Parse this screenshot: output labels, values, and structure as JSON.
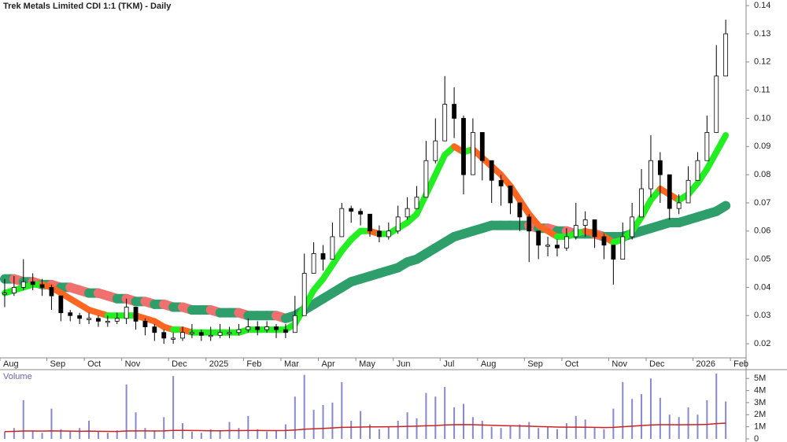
{
  "chart_data": [
    {
      "type": "candlestick",
      "title": "Trek Metals Limited CDI 1:1 (TKM) - Daily",
      "categories": [
        "Aug",
        null,
        null,
        null,
        null,
        "Sep",
        null,
        null,
        null,
        "Oct",
        null,
        null,
        null,
        "Nov",
        null,
        null,
        null,
        null,
        "Dec",
        null,
        null,
        null,
        "2025",
        null,
        null,
        null,
        "Feb",
        null,
        null,
        null,
        "Mar",
        null,
        null,
        null,
        "Apr",
        null,
        null,
        null,
        "May",
        null,
        null,
        null,
        "Jun",
        null,
        null,
        null,
        null,
        "Jul",
        null,
        null,
        null,
        "Aug",
        null,
        null,
        null,
        null,
        "Sep",
        null,
        null,
        null,
        "Oct",
        null,
        null,
        null,
        null,
        "Nov",
        null,
        null,
        null,
        "Dec",
        null,
        null,
        null,
        null,
        "2026",
        null,
        null,
        null,
        "Feb"
      ],
      "high": [
        0.043,
        0.044,
        0.05,
        0.045,
        0.043,
        0.041,
        0.035,
        0.032,
        0.031,
        0.031,
        0.03,
        0.03,
        0.031,
        0.036,
        0.033,
        0.029,
        0.027,
        0.025,
        0.024,
        0.026,
        0.027,
        0.025,
        0.026,
        0.027,
        0.026,
        0.027,
        0.029,
        0.028,
        0.028,
        0.027,
        0.027,
        0.037,
        0.052,
        0.056,
        0.055,
        0.063,
        0.07,
        0.069,
        0.068,
        0.066,
        0.062,
        0.063,
        0.069,
        0.072,
        0.076,
        0.092,
        0.1,
        0.115,
        0.111,
        0.101,
        0.1,
        0.091,
        0.084,
        0.08,
        0.076,
        0.07,
        0.066,
        0.06,
        0.058,
        0.057,
        0.061,
        0.07,
        0.067,
        0.063,
        0.059,
        0.054,
        0.063,
        0.07,
        0.082,
        0.094,
        0.088,
        0.08,
        0.073,
        0.083,
        0.088,
        0.101,
        0.126,
        0.135,
        null
      ],
      "low": [
        0.033,
        0.037,
        0.039,
        0.039,
        0.037,
        0.032,
        0.028,
        0.028,
        0.027,
        0.027,
        0.026,
        0.026,
        0.027,
        0.027,
        0.025,
        0.023,
        0.021,
        0.02,
        0.02,
        0.021,
        0.022,
        0.021,
        0.021,
        0.022,
        0.022,
        0.023,
        0.024,
        0.023,
        0.024,
        0.022,
        0.022,
        0.024,
        0.033,
        0.048,
        0.046,
        0.05,
        0.06,
        0.063,
        0.062,
        0.058,
        0.056,
        0.057,
        0.059,
        0.064,
        0.068,
        0.072,
        0.084,
        0.092,
        0.093,
        0.073,
        0.082,
        0.078,
        0.07,
        0.069,
        0.066,
        0.06,
        0.049,
        0.05,
        0.051,
        0.051,
        0.053,
        0.057,
        0.058,
        0.054,
        0.05,
        0.041,
        0.052,
        0.057,
        0.065,
        0.072,
        0.07,
        0.064,
        0.066,
        0.071,
        0.08,
        0.086,
        0.1,
        0.115,
        null
      ],
      "close": [
        0.038,
        0.04,
        0.042,
        0.041,
        0.04,
        0.037,
        0.031,
        0.03,
        0.029,
        0.029,
        0.028,
        0.028,
        0.029,
        0.033,
        0.028,
        0.026,
        0.024,
        0.022,
        0.022,
        0.024,
        0.024,
        0.023,
        0.023,
        0.024,
        0.024,
        0.025,
        0.026,
        0.025,
        0.026,
        0.025,
        0.024,
        0.03,
        0.045,
        0.052,
        0.05,
        0.058,
        0.068,
        0.067,
        0.066,
        0.06,
        0.058,
        0.06,
        0.065,
        0.068,
        0.072,
        0.085,
        0.092,
        0.105,
        0.1,
        0.08,
        0.095,
        0.085,
        0.078,
        0.076,
        0.07,
        0.065,
        0.06,
        0.055,
        0.055,
        0.054,
        0.058,
        0.062,
        0.064,
        0.058,
        0.055,
        0.05,
        0.058,
        0.065,
        0.075,
        0.085,
        0.08,
        0.068,
        0.07,
        0.078,
        0.085,
        0.095,
        0.115,
        0.13,
        null
      ],
      "ma_fast": [
        0.038,
        0.039,
        0.04,
        0.041,
        0.041,
        0.04,
        0.038,
        0.036,
        0.034,
        0.032,
        0.031,
        0.03,
        0.03,
        0.03,
        0.03,
        0.029,
        0.028,
        0.026,
        0.025,
        0.025,
        0.024,
        0.024,
        0.024,
        0.024,
        0.024,
        0.024,
        0.025,
        0.025,
        0.025,
        0.025,
        0.025,
        0.027,
        0.033,
        0.039,
        0.043,
        0.048,
        0.053,
        0.057,
        0.06,
        0.06,
        0.059,
        0.059,
        0.061,
        0.063,
        0.066,
        0.073,
        0.08,
        0.087,
        0.09,
        0.088,
        0.089,
        0.086,
        0.083,
        0.08,
        0.076,
        0.071,
        0.066,
        0.062,
        0.06,
        0.058,
        0.058,
        0.059,
        0.06,
        0.059,
        0.058,
        0.056,
        0.057,
        0.06,
        0.065,
        0.071,
        0.075,
        0.073,
        0.071,
        0.073,
        0.077,
        0.082,
        0.088,
        0.094,
        null
      ],
      "ma_slow": [
        0.043,
        0.043,
        0.042,
        0.042,
        0.041,
        0.041,
        0.04,
        0.04,
        0.039,
        0.038,
        0.038,
        0.037,
        0.036,
        0.036,
        0.035,
        0.035,
        0.034,
        0.034,
        0.033,
        0.033,
        0.032,
        0.032,
        0.032,
        0.031,
        0.031,
        0.031,
        0.03,
        0.03,
        0.03,
        0.03,
        0.029,
        0.03,
        0.032,
        0.034,
        0.036,
        0.038,
        0.04,
        0.042,
        0.043,
        0.044,
        0.045,
        0.046,
        0.047,
        0.049,
        0.05,
        0.052,
        0.054,
        0.056,
        0.058,
        0.059,
        0.06,
        0.061,
        0.062,
        0.062,
        0.062,
        0.062,
        0.062,
        0.061,
        0.061,
        0.06,
        0.06,
        0.059,
        0.059,
        0.059,
        0.058,
        0.058,
        0.058,
        0.059,
        0.06,
        0.061,
        0.062,
        0.063,
        0.063,
        0.064,
        0.065,
        0.066,
        0.067,
        0.069,
        null
      ],
      "colors": {
        "candle": "#000000",
        "fast_up": "#22ee22",
        "fast_down": "#ff6622",
        "slow_up": "#2e9e6a",
        "slow_down": "#f07070"
      },
      "ylim": [
        0.015,
        0.142
      ],
      "yticks": [
        0.02,
        0.03,
        0.04,
        0.05,
        0.06,
        0.07,
        0.08,
        0.09,
        {
          "value": 0.1,
          "label": "0.10"
        },
        0.11,
        0.12,
        0.13,
        0.14
      ]
    },
    {
      "type": "bar",
      "title": "Volume",
      "values": [
        600000,
        900000,
        3200000,
        700000,
        500000,
        2500000,
        800000,
        600000,
        900000,
        1500000,
        600000,
        500000,
        700000,
        4500000,
        2200000,
        900000,
        700000,
        1800000,
        5200000,
        1300000,
        600000,
        500000,
        800000,
        700000,
        1400000,
        900000,
        1900000,
        800000,
        600000,
        700000,
        1200000,
        3500000,
        5300000,
        2400000,
        2800000,
        3000000,
        4700000,
        1500000,
        2300000,
        1200000,
        800000,
        1000000,
        1500000,
        2200000,
        1700000,
        3800000,
        3500000,
        4300000,
        2600000,
        2900000,
        1800000,
        1500000,
        1000000,
        900000,
        1100000,
        1200000,
        1400000,
        900000,
        1000000,
        800000,
        1300000,
        1900000,
        1600000,
        900000,
        800000,
        2500000,
        4700000,
        3300000,
        3700000,
        5000000,
        3400000,
        2000000,
        1800000,
        2600000,
        2000000,
        3200000,
        5400000,
        3100000,
        null
      ],
      "ma": [
        600000,
        620000,
        650000,
        650000,
        640000,
        660000,
        650000,
        640000,
        630000,
        640000,
        630000,
        620000,
        610000,
        650000,
        660000,
        660000,
        650000,
        660000,
        700000,
        700000,
        690000,
        680000,
        670000,
        670000,
        680000,
        680000,
        690000,
        690000,
        680000,
        680000,
        690000,
        730000,
        800000,
        830000,
        860000,
        900000,
        950000,
        960000,
        980000,
        990000,
        990000,
        1000000,
        1010000,
        1030000,
        1050000,
        1080000,
        1100000,
        1150000,
        1170000,
        1180000,
        1170000,
        1150000,
        1120000,
        1100000,
        1080000,
        1070000,
        1050000,
        1020000,
        1000000,
        980000,
        970000,
        970000,
        960000,
        950000,
        940000,
        950000,
        1000000,
        1050000,
        1100000,
        1150000,
        1170000,
        1170000,
        1160000,
        1170000,
        1180000,
        1200000,
        1260000,
        1300000,
        null
      ],
      "color": "#8888cc",
      "ma_color": "#cc2222",
      "ylim": [
        0,
        5600000
      ],
      "yticks": [
        0,
        {
          "value": 1000000,
          "label": "1M"
        },
        {
          "value": 2000000,
          "label": "2M"
        },
        {
          "value": 3000000,
          "label": "3M"
        },
        {
          "value": 4000000,
          "label": "4M"
        },
        {
          "value": 5000000,
          "label": "5M"
        }
      ]
    }
  ]
}
